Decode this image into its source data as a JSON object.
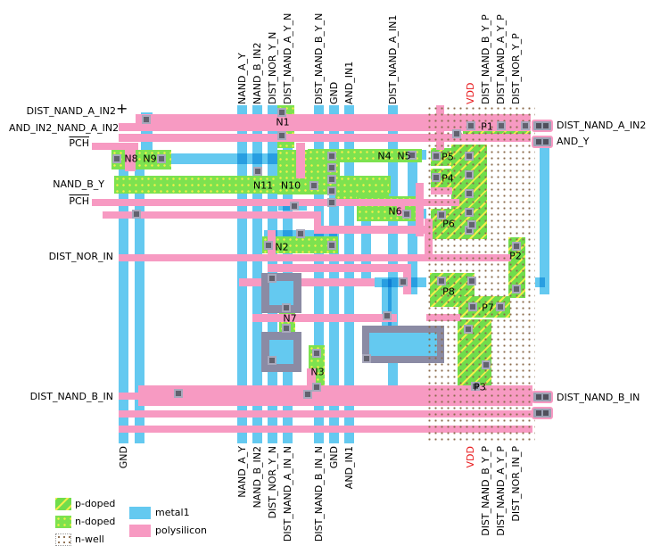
{
  "cursor_glyph": "+",
  "top_labels": [
    {
      "text": "NAND_A_Y"
    },
    {
      "text": "NAND_B_IN2"
    },
    {
      "text": "DIST_NOR_Y_N"
    },
    {
      "text": "DIST_NAND_A_Y_N"
    },
    {
      "text": "DIST_NAND_B_Y_N"
    },
    {
      "text": "GND"
    },
    {
      "text": "AND_IN1"
    },
    {
      "text": "DIST_NAND_A_IN1"
    },
    {
      "text": "VDD",
      "power": true
    },
    {
      "text": "DIST_NAND_B_Y_P"
    },
    {
      "text": "DIST_NAND_A_Y_P"
    },
    {
      "text": "DIST_NOR_Y_P"
    }
  ],
  "bottom_labels": [
    {
      "text": "GND"
    },
    {
      "text": "NAND_A_Y"
    },
    {
      "text": "NAND_B_IN2"
    },
    {
      "text": "DIST_NOR_Y_N"
    },
    {
      "text": "DIST_NAND_A_IN_N"
    },
    {
      "text": "DIST_NAND_B_IN_N"
    },
    {
      "text": "GND"
    },
    {
      "text": "AND_IN1"
    },
    {
      "text": "VDD",
      "power": true
    },
    {
      "text": "DIST_NAND_B_Y_P"
    },
    {
      "text": "DIST_NAND_A_Y_P"
    },
    {
      "text": "DIST_NOR_IN_P"
    }
  ],
  "left_labels": [
    {
      "text": "DIST_NAND_A_IN2"
    },
    {
      "text": "AND_IN2_NAND_A_IN2"
    },
    {
      "text": "PCH",
      "overline": true
    },
    {
      "text": "NAND_B_Y"
    },
    {
      "text": "PCH",
      "overline": true
    },
    {
      "text": "DIST_NOR_IN"
    },
    {
      "text": "DIST_NAND_B_IN"
    }
  ],
  "right_labels": [
    {
      "text": "DIST_NAND_A_IN2"
    },
    {
      "text": "AND_Y"
    },
    {
      "text": "DIST_NAND_B_IN"
    }
  ],
  "devices": {
    "nmos": [
      "N1",
      "N2",
      "N3",
      "N4",
      "N5",
      "N6",
      "N7",
      "N8",
      "N9",
      "N10",
      "N11"
    ],
    "pmos": [
      "P1",
      "P2",
      "P3",
      "P4",
      "P5",
      "P6",
      "P7",
      "P8"
    ]
  },
  "legend": {
    "items": [
      {
        "label": "p-doped",
        "type": "pdoped"
      },
      {
        "label": "n-doped",
        "type": "ndoped"
      },
      {
        "label": "n-well",
        "type": "nwell"
      },
      {
        "label": "metal1",
        "type": "metal1"
      },
      {
        "label": "polysilicon",
        "type": "polysilicon"
      }
    ]
  },
  "colors": {
    "metal1": "#64c9f0",
    "polysilicon": "#f79ac2",
    "doped_green": "#7de24f",
    "hatch_yellow": "#f2ee4a",
    "nwell_dot": "#8a6a4a",
    "vdd_text": "#e8191c",
    "contact": "#62626e"
  }
}
